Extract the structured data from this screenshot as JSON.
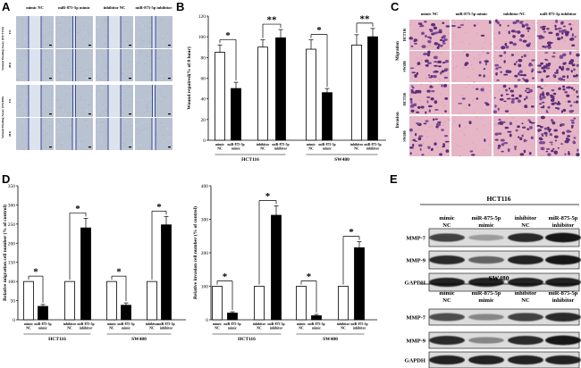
{
  "panel_labels": {
    "A": "A",
    "B": "B",
    "C": "C",
    "D": "D",
    "E": "E"
  },
  "panel_a": {
    "columns": [
      "mimic NC",
      "miR-875-5p mimic",
      "inhibitor NC",
      "miR-875-5p inhibitor"
    ],
    "group_labels": [
      "Wound Healing Assay (HCT116)",
      "Wound Healing Assay (SW480)"
    ],
    "row_times": [
      "0 h",
      "48 h",
      "0 h",
      "48 h"
    ]
  },
  "panel_c": {
    "columns": [
      "mimic NC",
      "miR-875-5p mimic",
      "inhibitor NC",
      "miR-875-5p inhibitor"
    ],
    "row_cells": [
      "HCT116",
      "SW480",
      "HCT116",
      "SW480"
    ],
    "row_groups": [
      "Migration",
      "Invasion"
    ]
  },
  "panel_e": {
    "cell_lines": [
      "HCT116",
      "SW480"
    ],
    "lanes": [
      "mimic NC",
      "miR-875-5p mimic",
      "inhibitor NC",
      "miR-875-5p inhibitor"
    ],
    "proteins": [
      "MMP-7",
      "MMP-9",
      "GAPDH"
    ],
    "intensity": {
      "HCT116": {
        "MMP-7": [
          0.75,
          0.35,
          0.85,
          0.95
        ],
        "MMP-9": [
          0.85,
          0.6,
          0.9,
          0.95
        ],
        "GAPDH": [
          0.9,
          0.9,
          0.9,
          0.9
        ]
      },
      "SW480": {
        "MMP-7": [
          0.7,
          0.45,
          0.75,
          0.85
        ],
        "MMP-9": [
          0.85,
          0.45,
          0.85,
          0.95
        ],
        "GAPDH": [
          0.9,
          0.9,
          0.9,
          0.9
        ]
      }
    }
  },
  "chart_data": [
    {
      "panel": "B",
      "type": "bar",
      "ylabel": "Wound repaired(% of 0 hour)",
      "ylim": [
        0,
        120
      ],
      "yticks": [
        0,
        20,
        40,
        60,
        80,
        100,
        120
      ],
      "categories": [
        "mimic NC",
        "miR-875-5p mimic",
        "inhibitor NC",
        "miR-875-5p inhibitor",
        "mimic NC",
        "miR-875-5p mimic",
        "inhibitor NC",
        "miR-875-5p inhibitor"
      ],
      "groups": [
        "HCT116",
        "SW480"
      ],
      "values": [
        85,
        50,
        90,
        99,
        88,
        46,
        92,
        100
      ],
      "errors": [
        7,
        6,
        7,
        8,
        9,
        4,
        10,
        8
      ],
      "bar_colors": [
        "white",
        "black",
        "white",
        "black",
        "white",
        "black",
        "white",
        "black"
      ],
      "significance": [
        {
          "pair": [
            0,
            1
          ],
          "label": "*"
        },
        {
          "pair": [
            2,
            3
          ],
          "label": "**"
        },
        {
          "pair": [
            4,
            5
          ],
          "label": "*"
        },
        {
          "pair": [
            6,
            7
          ],
          "label": "**"
        }
      ]
    },
    {
      "panel": "D-migration",
      "type": "bar",
      "ylabel": "Relative migration cell number (% of control)",
      "ylim": [
        0,
        350
      ],
      "yticks": [
        0,
        50,
        100,
        150,
        200,
        250,
        300,
        350
      ],
      "categories": [
        "mimic NC",
        "miR-875-5p mimic",
        "inhibitor NC",
        "miR-875-5p inhibitor",
        "mimic NC",
        "miR-875-5p mimic",
        "inhibitor NC",
        "miR-875-5p inhibitor"
      ],
      "groups": [
        "HCT116",
        "SW480"
      ],
      "values": [
        100,
        35,
        100,
        240,
        100,
        38,
        100,
        248
      ],
      "errors": [
        0,
        5,
        0,
        25,
        0,
        6,
        0,
        22
      ],
      "bar_colors": [
        "white",
        "black",
        "white",
        "black",
        "white",
        "black",
        "white",
        "black"
      ],
      "significance": [
        {
          "pair": [
            0,
            1
          ],
          "label": "*"
        },
        {
          "pair": [
            2,
            3
          ],
          "label": "*"
        },
        {
          "pair": [
            4,
            5
          ],
          "label": "*"
        },
        {
          "pair": [
            6,
            7
          ],
          "label": "*"
        }
      ]
    },
    {
      "panel": "D-invasion",
      "type": "bar",
      "ylabel": "Relative invasion cell number (% of control)",
      "ylim": [
        0,
        400
      ],
      "yticks": [
        0,
        100,
        200,
        300,
        400
      ],
      "categories": [
        "mimic NC",
        "miR-875-5p mimic",
        "inhibitor NC",
        "miR-875-5p inhibitor",
        "mimic NC",
        "miR-875-5p mimic",
        "inhibitor NC",
        "miR-875-5p inhibitor"
      ],
      "groups": [
        "HCT116",
        "SW480"
      ],
      "values": [
        100,
        20,
        100,
        312,
        100,
        12,
        100,
        215
      ],
      "errors": [
        0,
        4,
        0,
        28,
        0,
        4,
        0,
        18
      ],
      "bar_colors": [
        "white",
        "black",
        "white",
        "black",
        "white",
        "black",
        "white",
        "black"
      ],
      "significance": [
        {
          "pair": [
            0,
            1
          ],
          "label": "*"
        },
        {
          "pair": [
            2,
            3
          ],
          "label": "*"
        },
        {
          "pair": [
            4,
            5
          ],
          "label": "*"
        },
        {
          "pair": [
            6,
            7
          ],
          "label": "*"
        }
      ]
    }
  ]
}
